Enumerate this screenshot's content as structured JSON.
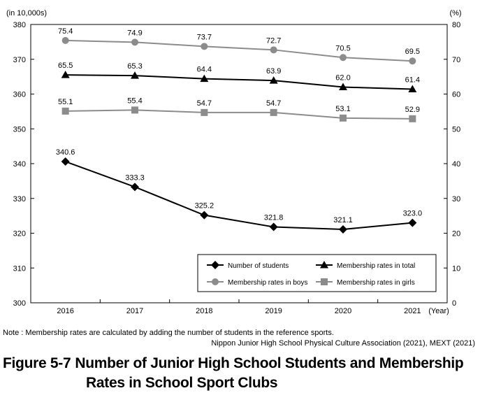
{
  "figure": {
    "label": "Figure  5-7",
    "title_line1": "Number of Junior High School Students and Membership",
    "title_line2": "Rates in School Sport Clubs",
    "note": "Note : Membership rates are calculated by adding the number of students in the reference sports.",
    "source": "Nippon Junior High School Physical Culture Association (2021), MEXT (2021)"
  },
  "chart_data": {
    "type": "line",
    "categories": [
      "2016",
      "2017",
      "2018",
      "2019",
      "2020",
      "2021"
    ],
    "xlabel": "(Year)",
    "ylabel_left": "(in 10,000s)",
    "ylabel_right": "(%)",
    "ylim_left": [
      300,
      380
    ],
    "yticks_left": [
      300,
      310,
      320,
      330,
      340,
      350,
      360,
      370,
      380
    ],
    "ylim_right": [
      0,
      80
    ],
    "yticks_right": [
      0,
      10,
      20,
      30,
      40,
      50,
      60,
      70,
      80
    ],
    "grid": false,
    "legend_position": "bottom-right",
    "series": [
      {
        "name": "Number of students",
        "axis": "left",
        "marker": "diamond",
        "color": "#000000",
        "values": [
          340.6,
          333.3,
          325.2,
          321.8,
          321.1,
          323.0
        ],
        "labels": [
          "340.6",
          "333.3",
          "325.2",
          "321.8",
          "321.1",
          "323.0"
        ]
      },
      {
        "name": "Membership rates in total",
        "axis": "right",
        "marker": "triangle",
        "color": "#000000",
        "values": [
          65.5,
          65.3,
          64.4,
          63.9,
          62.0,
          61.4
        ],
        "labels": [
          "65.5",
          "65.3",
          "64.4",
          "63.9",
          "62.0",
          "61.4"
        ]
      },
      {
        "name": "Membership rates in boys",
        "axis": "right",
        "marker": "circle",
        "color": "#8c8c8c",
        "values": [
          75.4,
          74.9,
          73.7,
          72.7,
          70.5,
          69.5
        ],
        "labels": [
          "75.4",
          "74.9",
          "73.7",
          "72.7",
          "70.5",
          "69.5"
        ]
      },
      {
        "name": "Membership rates in girls",
        "axis": "right",
        "marker": "square",
        "color": "#8c8c8c",
        "values": [
          55.1,
          55.4,
          54.7,
          54.7,
          53.1,
          52.9
        ],
        "labels": [
          "55.1",
          "55.4",
          "54.7",
          "54.7",
          "53.1",
          "52.9"
        ]
      }
    ],
    "legend_order": [
      "Number of students",
      "Membership rates in total",
      "Membership rates in boys",
      "Membership rates in girls"
    ]
  }
}
